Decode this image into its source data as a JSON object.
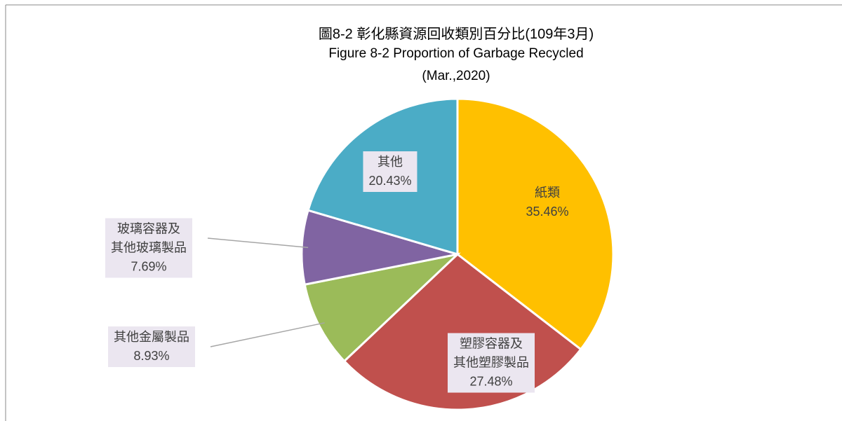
{
  "chart_data": {
    "type": "pie",
    "title": [
      "圖8-2 彰化縣資源回收類別百分比(109年3月)",
      "Figure 8-2 Proportion of Garbage Recycled",
      "(Mar.,2020)"
    ],
    "categories": [
      "紙類",
      "塑膠容器及\n其他塑膠製品",
      "其他金屬製品",
      "玻璃容器及\n其他玻璃製品",
      "其他"
    ],
    "values": [
      35.46,
      27.48,
      8.93,
      7.69,
      20.43
    ],
    "value_labels": [
      "35.46%",
      "27.48%",
      "8.93%",
      "7.69%",
      "20.43%"
    ],
    "colors": [
      "#FFC000",
      "#C0504D",
      "#9BBB59",
      "#8064A2",
      "#4BACC6"
    ]
  }
}
